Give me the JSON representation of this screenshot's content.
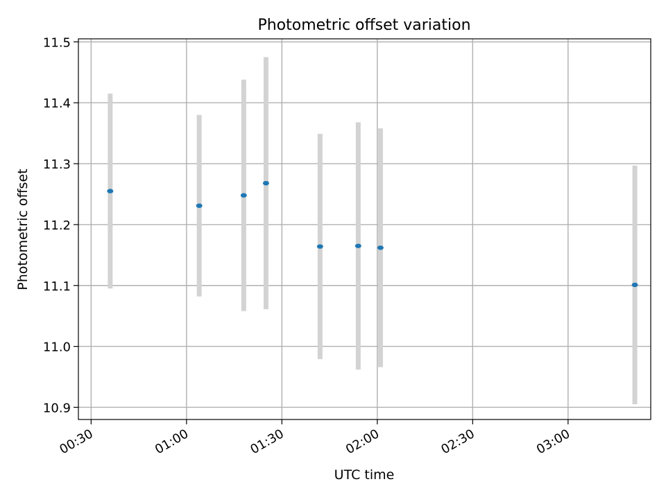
{
  "chart_data": {
    "type": "scatter",
    "title": "Photometric offset variation",
    "xlabel": "UTC time",
    "ylabel": "Photometric offset",
    "x_is_time": true,
    "xlim": [
      "00:26",
      "03:26"
    ],
    "ylim": [
      10.88,
      11.505
    ],
    "xticks": [
      "00:30",
      "01:00",
      "01:30",
      "02:00",
      "02:30",
      "03:00"
    ],
    "yticks": [
      "10.9",
      "11.0",
      "11.1",
      "11.2",
      "11.3",
      "11.4",
      "11.5"
    ],
    "grid": true,
    "errorbar_color": "#d3d3d3",
    "marker_color": "#1f77b4",
    "series": [
      {
        "points": [
          {
            "x": "00:36",
            "y": 11.255,
            "err": 0.16
          },
          {
            "x": "01:04",
            "y": 11.231,
            "err": 0.149
          },
          {
            "x": "01:18",
            "y": 11.248,
            "err": 0.19
          },
          {
            "x": "01:25",
            "y": 11.268,
            "err": 0.207
          },
          {
            "x": "01:42",
            "y": 11.164,
            "err": 0.185
          },
          {
            "x": "01:54",
            "y": 11.165,
            "err": 0.203
          },
          {
            "x": "02:01",
            "y": 11.162,
            "err": 0.196
          },
          {
            "x": "03:21",
            "y": 11.101,
            "err": 0.196
          }
        ]
      }
    ]
  }
}
